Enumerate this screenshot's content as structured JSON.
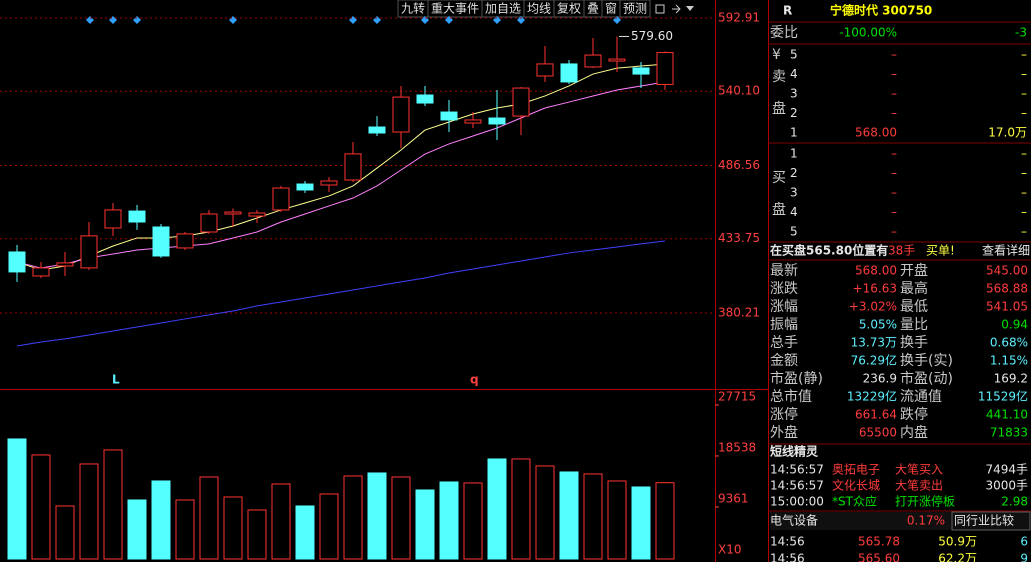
{
  "toolbar": [
    "九转",
    "重大事件",
    "加自选",
    "均线",
    "复权",
    "叠",
    "窗",
    "预测"
  ],
  "chart_data": [
    {
      "type": "candlestick",
      "open": [
        424.2,
        406.9,
        414.1,
        412.7,
        441.5,
        453.7,
        442.2,
        427.1,
        438.6,
        451.6,
        450.1,
        454.5,
        473.2,
        472.5,
        476.1,
        514.3,
        510.7,
        537.4,
        525.1,
        517.2,
        520.8,
        522.2,
        551.1,
        559.8,
        557.6,
        561.9,
        556.9,
        545.0
      ],
      "high": [
        429.2,
        417.0,
        424.2,
        445.8,
        459.5,
        458.1,
        444.4,
        438.6,
        454.5,
        455.5,
        454.5,
        471.8,
        475.4,
        478.3,
        503.5,
        522.2,
        543.9,
        543.9,
        533.8,
        525.1,
        541.0,
        543.2,
        572.7,
        562.6,
        578.5,
        579.6,
        561.2,
        568.88
      ],
      "low": [
        402.6,
        405.4,
        406.9,
        411.2,
        435.8,
        440.1,
        419.9,
        425.6,
        437.2,
        442.2,
        445.1,
        453.0,
        466.7,
        467.4,
        474.7,
        507.8,
        499.2,
        529.5,
        510.7,
        513.6,
        504.9,
        508.5,
        546.8,
        545.3,
        556.9,
        554.0,
        542.4,
        541.05
      ],
      "close": [
        409.8,
        412.7,
        416.3,
        435.8,
        454.5,
        445.8,
        421.3,
        437.2,
        451.6,
        453.0,
        452.3,
        470.3,
        468.9,
        475.4,
        494.9,
        510.0,
        535.9,
        531.6,
        519.4,
        519.4,
        516.5,
        542.4,
        559.8,
        546.8,
        566.2,
        563.3,
        552.5,
        568.0
      ],
      "lines": [
        {
          "color": "#ffff90",
          "values": [
            417.0,
            411.2,
            414.1,
            421.3,
            428.5,
            434.3,
            434.3,
            435.7,
            438.6,
            442.9,
            448.7,
            454.5,
            459.5,
            464.6,
            471.8,
            484.7,
            497.7,
            512.1,
            517.9,
            523.7,
            528.0,
            530.9,
            536.7,
            543.9,
            552.5,
            556.8,
            558.3,
            559.7
          ]
        },
        {
          "color": "#ff80ff",
          "values": [
            417.0,
            412.6,
            415.5,
            419.9,
            422.7,
            425.6,
            427.1,
            428.5,
            430.0,
            434.3,
            438.6,
            445.8,
            451.6,
            457.4,
            463.1,
            471.8,
            483.3,
            494.8,
            502.1,
            507.8,
            513.6,
            520.8,
            528.0,
            532.3,
            536.7,
            541.0,
            543.9,
            546.8
          ]
        },
        {
          "color": "#4040ff",
          "values": [
            356.4,
            359.3,
            361.5,
            364.3,
            367.2,
            370.1,
            373.0,
            375.9,
            378.8,
            381.6,
            385.3,
            388.1,
            391.0,
            393.9,
            396.8,
            399.7,
            402.6,
            405.4,
            409.0,
            411.9,
            414.8,
            417.7,
            420.6,
            423.5,
            425.6,
            427.8,
            430.0,
            432.1
          ]
        }
      ],
      "annotation": "579.60",
      "markers": [
        "L",
        "q"
      ],
      "ylim": [
        326.1,
        605.9
      ],
      "yticks": [
        592.91,
        {
          "value": 540.1,
          "label": "540.10"
        },
        486.56,
        433.75,
        380.21
      ],
      "grid": true
    },
    {
      "type": "bar",
      "values": [
        21600,
        18720,
        9540,
        17100,
        19620,
        10620,
        14040,
        10620,
        14760,
        11160,
        8820,
        13500,
        9540,
        11700,
        14940,
        15480,
        14760,
        12420,
        13860,
        13680,
        18000,
        18000,
        16740,
        15660,
        15300,
        14040,
        12960,
        13730
      ],
      "ylim": [
        0,
        30050
      ],
      "yticks": [
        9361,
        18538,
        27715
      ],
      "unit_label": "X10"
    }
  ],
  "panel": {
    "code_label": "R",
    "title": "宁德时代 300750",
    "weibi": {
      "label": "委比",
      "ratio": "-100.00%",
      "diff": "-3"
    },
    "sell_label": [
      "¥",
      "卖",
      "盘"
    ],
    "sell": [
      [
        "5",
        "–",
        "–"
      ],
      [
        "4",
        "–",
        "–"
      ],
      [
        "3",
        "–",
        "–"
      ],
      [
        "2",
        "–",
        "–"
      ],
      [
        "1",
        "568.00",
        "17.0万"
      ]
    ],
    "buy_label": [
      "买",
      "盘"
    ],
    "buy": [
      [
        "1",
        "–",
        "–"
      ],
      [
        "2",
        "–",
        "–"
      ],
      [
        "3",
        "–",
        "–"
      ],
      [
        "4",
        "–",
        "–"
      ],
      [
        "5",
        "–",
        "–"
      ]
    ],
    "notice": {
      "text": "在买盘565.80位置有",
      "hands": "38手",
      "tag": "买单!",
      "link": "查看详细"
    },
    "quotes": [
      [
        "最新",
        "568.00",
        "开盘",
        "545.00"
      ],
      [
        "涨跌",
        "+16.63",
        "最高",
        "568.88"
      ],
      [
        "涨幅",
        "+3.02%",
        "最低",
        "541.05"
      ],
      [
        "振幅",
        "5.05%",
        "量比",
        "0.94"
      ],
      [
        "总手",
        "13.73万",
        "换手",
        "0.68%"
      ],
      [
        "金额",
        "76.29亿",
        "换手(实)",
        "1.15%"
      ],
      [
        "市盈(静)",
        "236.9",
        "市盈(动)",
        "169.2"
      ],
      [
        "总市值",
        "13229亿",
        "流通值",
        "11529亿"
      ],
      [
        "涨停",
        "661.64",
        "跌停",
        "441.10"
      ],
      [
        "外盘",
        "65500",
        "内盘",
        "71833"
      ]
    ],
    "sprite": {
      "title": "短线精灵",
      "rows": [
        [
          "14:56:57",
          "奥拓电子",
          "大笔买入",
          "7494手"
        ],
        [
          "14:56:57",
          "文化长城",
          "大笔卖出",
          "3000手"
        ],
        [
          "15:00:00",
          "*ST众应",
          "打开涨停板",
          "2.98"
        ]
      ]
    },
    "sector": {
      "name": "电气设备",
      "change": "0.17%",
      "button": "同行业比较"
    },
    "ticks": [
      [
        "14:56",
        "565.78",
        "50.9万",
        "6"
      ],
      [
        "14:56",
        "565.60",
        "62.2万",
        "9"
      ]
    ]
  }
}
